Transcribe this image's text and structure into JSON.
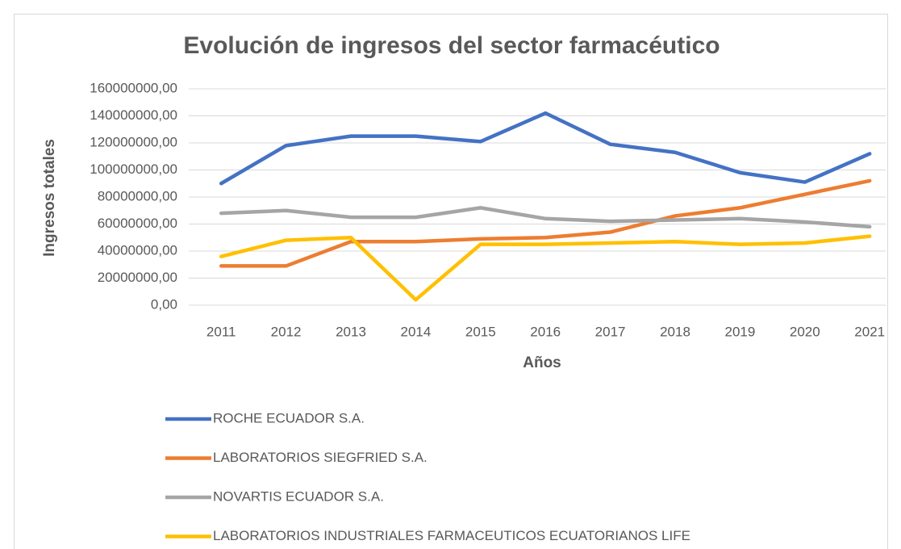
{
  "chart_data": {
    "type": "line",
    "title": "Evolución de ingresos del sector farmacéutico",
    "x_label": "Años",
    "y_label": "Ingresos totales",
    "categories": [
      "2011",
      "2012",
      "2013",
      "2014",
      "2015",
      "2016",
      "2017",
      "2018",
      "2019",
      "2020",
      "2021"
    ],
    "series": [
      {
        "name": "ROCHE ECUADOR S.A.",
        "color": "#4472c4",
        "values": [
          90000000,
          118000000,
          125000000,
          125000000,
          121000000,
          142000000,
          119000000,
          113000000,
          98000000,
          91000000,
          112000000
        ]
      },
      {
        "name": "LABORATORIOS SIEGFRIED S.A.",
        "color": "#ed7d31",
        "values": [
          29000000,
          29000000,
          47000000,
          47000000,
          49000000,
          50000000,
          54000000,
          66000000,
          72000000,
          82000000,
          92000000
        ]
      },
      {
        "name": "NOVARTIS ECUADOR S.A.",
        "color": "#a5a5a5",
        "values": [
          68000000,
          70000000,
          65000000,
          65000000,
          72000000,
          64000000,
          62000000,
          63000000,
          64000000,
          61500000,
          58000000
        ]
      },
      {
        "name": "LABORATORIOS INDUSTRIALES FARMACEUTICOS ECUATORIANOS LIFE",
        "color": "#ffc000",
        "values": [
          36000000,
          48000000,
          50000000,
          4000000,
          45000000,
          45000000,
          46000000,
          47000000,
          45000000,
          46000000,
          51000000
        ]
      }
    ],
    "ylim": [
      0,
      160000000
    ],
    "yticks": [
      {
        "value": 0,
        "label": "0,00"
      },
      {
        "value": 20000000,
        "label": "20000000,00"
      },
      {
        "value": 40000000,
        "label": "40000000,00"
      },
      {
        "value": 60000000,
        "label": "60000000,00"
      },
      {
        "value": 80000000,
        "label": "80000000,00"
      },
      {
        "value": 100000000,
        "label": "100000000,00"
      },
      {
        "value": 120000000,
        "label": "120000000,00"
      },
      {
        "value": 140000000,
        "label": "140000000,00"
      },
      {
        "value": 160000000,
        "label": "160000000,00"
      }
    ],
    "grid": true,
    "legend": "bottom"
  }
}
